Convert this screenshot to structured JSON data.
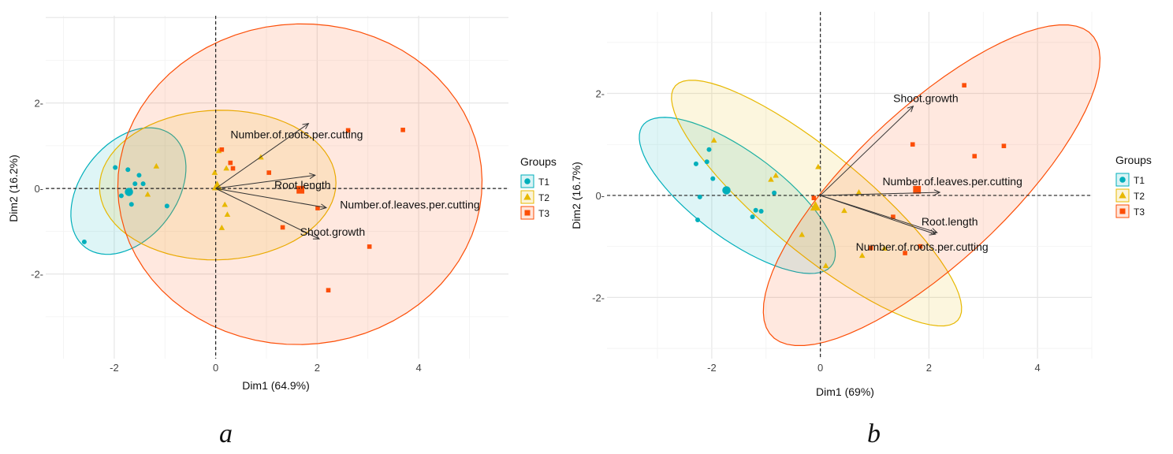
{
  "colors": {
    "T1": "#00AFBB",
    "T2": "#E7B800",
    "T3": "#FC4E07"
  },
  "chart_data": [
    {
      "type": "scatter",
      "panel_label": "a",
      "xlabel": "Dim1 (64.9%)",
      "ylabel": "Dim2 (16.2%)",
      "xlim": [
        -3.35,
        5.77
      ],
      "ylim": [
        -3.98,
        4.04
      ],
      "xticks": [
        "-2",
        "0",
        "2",
        "4"
      ],
      "yticks": [
        "-2",
        "0",
        "2"
      ],
      "grid": true,
      "legend": {
        "title": "Groups",
        "entries": [
          "T1",
          "T2",
          "T3"
        ],
        "placement": "right"
      },
      "series": [
        {
          "name": "T1",
          "shape": "circle",
          "points": [
            [
              -1.98,
              0.49
            ],
            [
              -1.73,
              0.44
            ],
            [
              -1.51,
              0.31
            ],
            [
              -1.59,
              0.11
            ],
            [
              -1.43,
              0.11
            ],
            [
              -1.86,
              -0.17
            ],
            [
              -1.66,
              -0.37
            ],
            [
              -0.96,
              -0.41
            ],
            [
              -2.59,
              -1.25
            ]
          ],
          "centroid": [
            -1.71,
            -0.08
          ],
          "ellipse": {
            "center": [
              -1.72,
              -0.06
            ],
            "axis1": [
              0.62,
              1.45
            ],
            "axis2": [
              0.95,
              -0.3
            ]
          }
        },
        {
          "name": "T2",
          "shape": "triangle",
          "points": [
            [
              -1.17,
              0.52
            ],
            [
              -1.34,
              -0.14
            ],
            [
              0.06,
              0.88
            ],
            [
              0.21,
              0.47
            ],
            [
              -0.02,
              0.37
            ],
            [
              0.89,
              0.73
            ],
            [
              0.18,
              -0.38
            ],
            [
              0.23,
              -0.61
            ],
            [
              0.12,
              -0.92
            ]
          ],
          "centroid": [
            0.03,
            0.05
          ],
          "ellipse": {
            "center": [
              0.04,
              0.08
            ],
            "axis1": [
              2.33,
              0.05
            ],
            "axis2": [
              0.0,
              1.75
            ]
          }
        },
        {
          "name": "T3",
          "shape": "square",
          "points": [
            [
              0.12,
              0.91
            ],
            [
              0.29,
              0.6
            ],
            [
              0.34,
              0.47
            ],
            [
              1.05,
              0.37
            ],
            [
              2.01,
              -0.46
            ],
            [
              1.32,
              -0.91
            ],
            [
              3.03,
              -1.36
            ],
            [
              2.22,
              -2.38
            ],
            [
              2.61,
              1.36
            ],
            [
              3.69,
              1.37
            ]
          ],
          "centroid": [
            1.67,
            -0.03
          ],
          "ellipse": {
            "center": [
              1.66,
              0.1
            ],
            "axis1": [
              3.59,
              0.1
            ],
            "axis2": [
              -0.05,
              3.75
            ]
          }
        }
      ],
      "arrows": [
        {
          "label": "Number.of.roots.per.cutting",
          "x": 1.83,
          "y": 1.52
        },
        {
          "label": "Root.length",
          "x": 1.96,
          "y": 0.31
        },
        {
          "label": "Number.of.leaves.per.cutting",
          "x": 2.18,
          "y": -0.45
        },
        {
          "label": "Shoot.growth",
          "x": 2.04,
          "y": -1.18
        }
      ]
    },
    {
      "type": "scatter",
      "panel_label": "b",
      "xlabel": "Dim1 (69%)",
      "ylabel": "Dim2 (16.7%)",
      "xlim": [
        -3.93,
        5.0
      ],
      "ylim": [
        -3.2,
        3.6
      ],
      "xticks": [
        "-2",
        "0",
        "2",
        "4"
      ],
      "yticks": [
        "-2",
        "0",
        "2"
      ],
      "grid": true,
      "legend": {
        "title": "Groups",
        "entries": [
          "T1",
          "T2",
          "T3"
        ],
        "placement": "right"
      },
      "series": [
        {
          "name": "T1",
          "shape": "circle",
          "points": [
            [
              -2.29,
              0.62
            ],
            [
              -2.09,
              0.66
            ],
            [
              -2.05,
              0.9
            ],
            [
              -1.98,
              0.33
            ],
            [
              -2.22,
              -0.03
            ],
            [
              -2.26,
              -0.48
            ],
            [
              -0.85,
              0.05
            ],
            [
              -1.19,
              -0.29
            ],
            [
              -1.09,
              -0.31
            ],
            [
              -1.25,
              -0.42
            ]
          ],
          "centroid": [
            -1.73,
            0.1
          ],
          "ellipse": {
            "center": [
              -1.53,
              0.0
            ],
            "axis1": [
              1.72,
              -1.4
            ],
            "axis2": [
              0.55,
              0.62
            ]
          }
        },
        {
          "name": "T2",
          "shape": "triangle",
          "points": [
            [
              -1.96,
              1.08
            ],
            [
              -0.82,
              0.39
            ],
            [
              -0.91,
              0.31
            ],
            [
              -0.04,
              0.56
            ],
            [
              0.71,
              0.06
            ],
            [
              0.44,
              -0.3
            ],
            [
              -0.34,
              -0.77
            ],
            [
              0.1,
              -1.38
            ],
            [
              0.77,
              -1.18
            ],
            [
              1.18,
              -1.04
            ]
          ],
          "centroid": [
            -0.09,
            -0.22
          ],
          "ellipse": {
            "center": [
              -0.07,
              -0.15
            ],
            "axis1": [
              2.6,
              -2.3
            ],
            "axis2": [
              0.62,
              0.72
            ]
          }
        },
        {
          "name": "T3",
          "shape": "square",
          "points": [
            [
              2.65,
              2.16
            ],
            [
              1.7,
              1.0
            ],
            [
              3.38,
              0.97
            ],
            [
              2.84,
              0.77
            ],
            [
              -0.12,
              -0.05
            ],
            [
              1.34,
              -0.42
            ],
            [
              0.93,
              -1.03
            ],
            [
              1.56,
              -1.13
            ],
            [
              1.84,
              -1.0
            ]
          ],
          "centroid": [
            1.78,
            0.11
          ],
          "ellipse": {
            "center": [
              2.05,
              0.2
            ],
            "axis1": [
              2.9,
              3.0
            ],
            "axis2": [
              1.1,
              -0.95
            ]
          }
        }
      ],
      "arrows": [
        {
          "label": "Shoot.growth",
          "x": 1.71,
          "y": 1.75
        },
        {
          "label": "Number.of.leaves.per.cutting",
          "x": 2.2,
          "y": 0.06
        },
        {
          "label": "Root.length",
          "x": 2.15,
          "y": -0.73
        },
        {
          "label": "Number.of.roots.per.cutting",
          "x": 2.12,
          "y": -0.76
        }
      ]
    }
  ]
}
